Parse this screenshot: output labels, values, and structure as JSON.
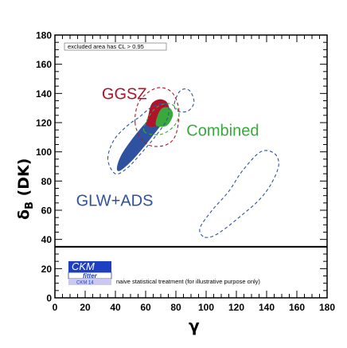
{
  "chart_data": {
    "type": "scatter",
    "xlabel": "γ",
    "ylabel_main": "δ",
    "ylabel_sub": "B",
    "ylabel_suffix": " (DK)",
    "xlim": [
      0,
      180
    ],
    "ylim": [
      0,
      180
    ],
    "xticks": [
      0,
      20,
      40,
      60,
      80,
      100,
      120,
      140,
      160,
      180
    ],
    "yticks": [
      0,
      20,
      40,
      60,
      80,
      100,
      120,
      140,
      160,
      180
    ],
    "legend_note": "excluded area has CL > 0.95",
    "naive_note": "naive statistical treatment (for illustrative purpose only)",
    "logo": {
      "line1": "CKM",
      "line2": "fitter",
      "line3": "CKM 14"
    },
    "reference_line_y": 35,
    "regions": [
      {
        "name": "GGSZ",
        "color": "#b0142a",
        "label_pos": [
          31,
          136
        ],
        "filled": [
          [
            61,
            118
          ],
          [
            62,
            126
          ],
          [
            64,
            133
          ],
          [
            69,
            136
          ],
          [
            74,
            134
          ],
          [
            76,
            127
          ],
          [
            74,
            121
          ],
          [
            69,
            118
          ]
        ],
        "dashed": [
          [
            53,
            120
          ],
          [
            55,
            133
          ],
          [
            62,
            141
          ],
          [
            70,
            144
          ],
          [
            78,
            140
          ],
          [
            82,
            128
          ],
          [
            80,
            112
          ],
          [
            74,
            105
          ],
          [
            64,
            104
          ],
          [
            57,
            109
          ]
        ]
      },
      {
        "name": "GLW+ADS",
        "color": "#2e52a0",
        "label_pos": [
          14,
          63
        ],
        "filled": [
          [
            41,
            89
          ],
          [
            44,
            98
          ],
          [
            52,
            110
          ],
          [
            60,
            120
          ],
          [
            65,
            125
          ],
          [
            71,
            126
          ],
          [
            71,
            120
          ],
          [
            64,
            110
          ],
          [
            57,
            101
          ],
          [
            50,
            93
          ],
          [
            43,
            87
          ]
        ],
        "dashed_a": [
          [
            35,
            95
          ],
          [
            39,
            108
          ],
          [
            48,
            118
          ],
          [
            56,
            124
          ],
          [
            63,
            130
          ],
          [
            70,
            133
          ],
          [
            75,
            131
          ],
          [
            74,
            122
          ],
          [
            66,
            110
          ],
          [
            57,
            99
          ],
          [
            48,
            89
          ],
          [
            40,
            85
          ]
        ],
        "dashed_b": [
          [
            79,
            133
          ],
          [
            83,
            142
          ],
          [
            89,
            142
          ],
          [
            92,
            134
          ],
          [
            88,
            128
          ],
          [
            81,
            128
          ]
        ],
        "dashed_c": [
          [
            98,
            42
          ],
          [
            96,
            48
          ],
          [
            104,
            60
          ],
          [
            115,
            73
          ],
          [
            124,
            87
          ],
          [
            136,
            100
          ],
          [
            145,
            99
          ],
          [
            148,
            91
          ],
          [
            143,
            78
          ],
          [
            135,
            67
          ],
          [
            124,
            57
          ],
          [
            112,
            47
          ],
          [
            104,
            42
          ]
        ]
      },
      {
        "name": "Combined",
        "color": "#3aa93d",
        "label_pos": [
          87,
          111
        ],
        "filled": [
          [
            67,
            118
          ],
          [
            68,
            125
          ],
          [
            71,
            130
          ],
          [
            76,
            130
          ],
          [
            78,
            125
          ],
          [
            74,
            118
          ]
        ],
        "dashed": [
          [
            59,
            114
          ],
          [
            62,
            124
          ],
          [
            68,
            131
          ],
          [
            76,
            133
          ],
          [
            82,
            127
          ],
          [
            79,
            118
          ],
          [
            70,
            112
          ]
        ]
      }
    ]
  }
}
